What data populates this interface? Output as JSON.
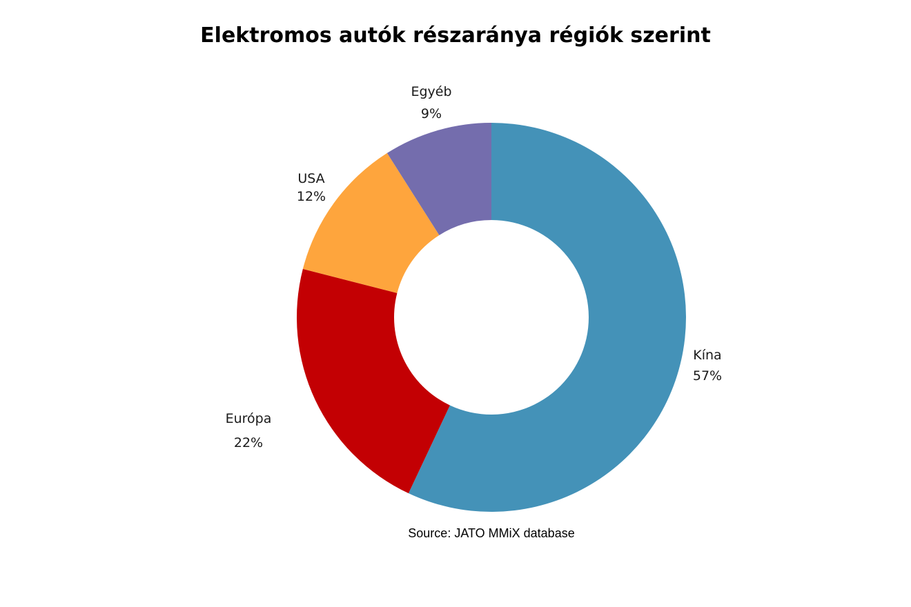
{
  "chart_data": {
    "type": "pie",
    "variant": "donut",
    "title": "Elektromos autók részaránya régiók szerint",
    "slices": [
      {
        "label": "Kína",
        "value": 57,
        "value_label": "57%",
        "color": "#4492b8"
      },
      {
        "label": "Európa",
        "value": 22,
        "value_label": "22%",
        "color": "#c30003"
      },
      {
        "label": "USA",
        "value": 12,
        "value_label": "12%",
        "color": "#fea53d"
      },
      {
        "label": "Egyéb",
        "value": 9,
        "value_label": "9%",
        "color": "#746dad"
      }
    ],
    "source": "Source: JATO MMiX database"
  }
}
